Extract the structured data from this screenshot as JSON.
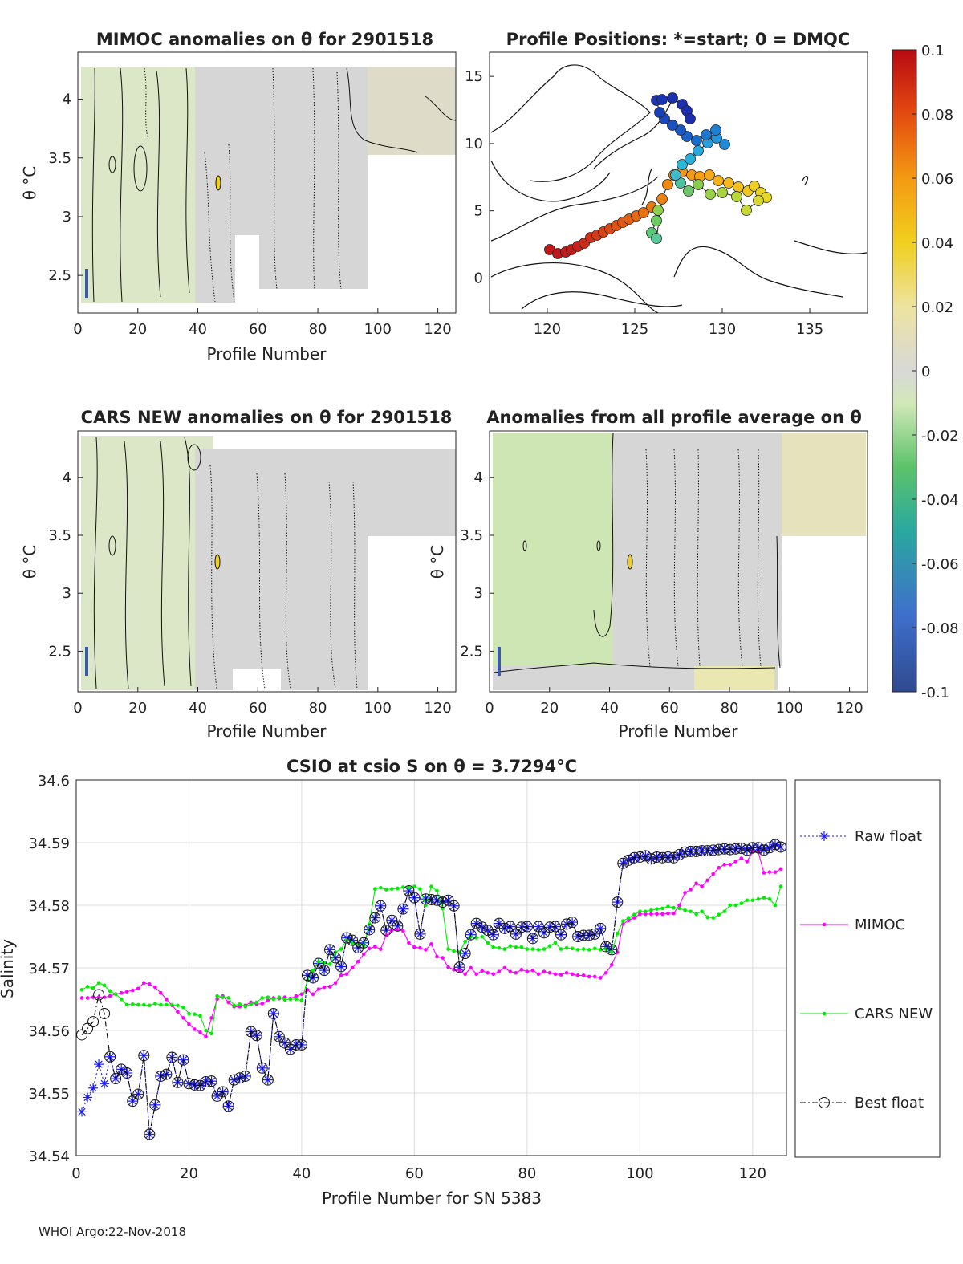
{
  "footer": "WHOI Argo:22-Nov-2018",
  "colors": {
    "raw": "#1a1aff",
    "mimoc": "#ff00ff",
    "cars": "#00ee00",
    "best": "#000000",
    "grid": "#dcdcdc"
  },
  "panels": {
    "mimoc": {
      "title": "MIMOC anomalies on θ  for 2901518",
      "xlabel": "Profile Number",
      "ylabel": "θ °C",
      "xticks": [
        "0",
        "20",
        "40",
        "60",
        "80",
        "100",
        "120"
      ],
      "yticks": [
        "2.5",
        "3",
        "3.5",
        "4"
      ]
    },
    "positions": {
      "title": "Profile Positions: *=start; 0 = DMQC",
      "xticks": [
        "120",
        "125",
        "130",
        "135"
      ],
      "yticks": [
        "0",
        "5",
        "10",
        "15"
      ]
    },
    "cars": {
      "title": "CARS NEW anomalies on θ for 2901518",
      "xlabel": "Profile Number",
      "ylabel": "θ °C",
      "xticks": [
        "0",
        "20",
        "40",
        "60",
        "80",
        "100",
        "120"
      ],
      "yticks": [
        "2.5",
        "3",
        "3.5",
        "4"
      ]
    },
    "average": {
      "title": "Anomalies from all profile average on θ",
      "xlabel": "Profile Number",
      "ylabel": "θ °C",
      "xticks": [
        "0",
        "20",
        "40",
        "60",
        "80",
        "100",
        "120"
      ],
      "yticks": [
        "2.5",
        "3",
        "3.5",
        "4"
      ]
    }
  },
  "colorbar": {
    "ticks": [
      "0.1",
      "0.08",
      "0.06",
      "0.04",
      "0.02",
      "0",
      "-0.02",
      "-0.04",
      "-0.06",
      "-0.08",
      "-0.1"
    ]
  },
  "chart_data": {
    "type": "line",
    "title": "CSIO at csio S on θ = 3.7294°C",
    "xlabel": "Profile Number for SN 5383",
    "ylabel": "Salinity",
    "xlim": [
      0,
      126
    ],
    "ylim": [
      34.54,
      34.6
    ],
    "xticks": [
      "0",
      "20",
      "40",
      "60",
      "80",
      "100",
      "120"
    ],
    "yticks": [
      "34.54",
      "34.55",
      "34.56",
      "34.57",
      "34.58",
      "34.59",
      "34.6"
    ],
    "grid": true,
    "legend": [
      "Raw float",
      "MIMOC",
      "CARS NEW",
      "Best float"
    ],
    "series": [
      {
        "name": "Raw float",
        "x": [
          1,
          2,
          3,
          4,
          5,
          6,
          7,
          8,
          9,
          10,
          11,
          12,
          13,
          14,
          15,
          16,
          17,
          18,
          19,
          20,
          21,
          22,
          23,
          24,
          25,
          26,
          27,
          28,
          29,
          30,
          31,
          32,
          33,
          34,
          35,
          36,
          37,
          38,
          39,
          40,
          41,
          42,
          43,
          44,
          45,
          46,
          47,
          48,
          49,
          50,
          51,
          52,
          53,
          54,
          55,
          56,
          57,
          58,
          59,
          60,
          61,
          62,
          63,
          64,
          65,
          66,
          67,
          68,
          69,
          70,
          71,
          72,
          73,
          74,
          75,
          76,
          77,
          78,
          79,
          80,
          81,
          82,
          83,
          84,
          85,
          86,
          87,
          88,
          89,
          90,
          91,
          92,
          93,
          94,
          95,
          96,
          97,
          98,
          99,
          100,
          101,
          102,
          103,
          104,
          105,
          106,
          107,
          108,
          109,
          110,
          111,
          112,
          113,
          114,
          115,
          116,
          117,
          118,
          119,
          120,
          121,
          122,
          123,
          124,
          125
        ],
        "y": [
          34.547,
          34.5493,
          34.5508,
          34.5546,
          34.5515,
          34.5558,
          34.5523,
          34.5538,
          34.5532,
          34.5487,
          34.5498,
          34.556,
          34.5434,
          34.5481,
          34.5527,
          34.553,
          34.5557,
          34.5517,
          34.5553,
          34.5515,
          34.5513,
          34.5512,
          34.5518,
          34.5519,
          34.5495,
          34.5502,
          34.5479,
          34.5521,
          34.5524,
          34.5527,
          34.5598,
          34.5592,
          34.554,
          34.5521,
          34.5627,
          34.559,
          34.558,
          34.557,
          34.5577,
          34.5577,
          34.5688,
          34.5684,
          34.5707,
          34.5696,
          34.5729,
          34.5716,
          34.5702,
          34.5748,
          34.5744,
          34.5732,
          34.574,
          34.5761,
          34.578,
          34.5799,
          34.576,
          34.5776,
          34.5767,
          34.5794,
          34.5823,
          34.5812,
          34.5754,
          34.581,
          34.5809,
          34.5808,
          34.5805,
          34.5808,
          34.5799,
          34.5701,
          34.5723,
          34.5753,
          34.5771,
          34.5765,
          34.576,
          34.5753,
          34.5771,
          34.5763,
          34.5766,
          34.5754,
          34.5765,
          34.5766,
          34.5747,
          34.5766,
          34.5756,
          34.5765,
          34.5766,
          34.5753,
          34.577,
          34.5773,
          34.575,
          34.5752,
          34.5752,
          34.5754,
          34.5763,
          34.5734,
          34.5729,
          34.5805,
          34.5867,
          34.5872,
          34.5876,
          34.5877,
          34.5879,
          34.5874,
          34.5877,
          34.5876,
          34.5877,
          34.5876,
          34.5881,
          34.5885,
          34.5886,
          34.5886,
          34.5887,
          34.5887,
          34.5888,
          34.5889,
          34.589,
          34.5889,
          34.589,
          34.5891,
          34.5888,
          34.5892,
          34.5892,
          34.5888,
          34.5892,
          34.5897,
          34.5893
        ]
      },
      {
        "name": "MIMOC",
        "x": [
          1,
          2,
          3,
          4,
          5,
          6,
          7,
          8,
          9,
          10,
          11,
          12,
          13,
          14,
          15,
          16,
          17,
          18,
          19,
          20,
          21,
          22,
          23,
          24,
          25,
          26,
          27,
          28,
          29,
          30,
          31,
          32,
          33,
          34,
          35,
          36,
          37,
          38,
          39,
          40,
          41,
          42,
          43,
          44,
          45,
          46,
          47,
          48,
          49,
          50,
          51,
          52,
          53,
          54,
          55,
          56,
          57,
          58,
          59,
          60,
          61,
          62,
          63,
          64,
          65,
          66,
          67,
          68,
          69,
          70,
          71,
          72,
          73,
          74,
          75,
          76,
          77,
          78,
          79,
          80,
          81,
          82,
          83,
          84,
          85,
          86,
          87,
          88,
          89,
          90,
          91,
          92,
          93,
          94,
          95,
          96,
          97,
          98,
          99,
          100,
          101,
          102,
          103,
          104,
          105,
          106,
          107,
          108,
          109,
          110,
          111,
          112,
          113,
          114,
          115,
          116,
          117,
          118,
          119,
          120,
          121,
          122,
          123,
          124,
          125
        ],
        "y": [
          34.5652,
          34.5652,
          34.5653,
          34.5653,
          34.5653,
          34.5655,
          34.5658,
          34.566,
          34.5662,
          34.5664,
          34.5667,
          34.5676,
          34.5674,
          34.5669,
          34.566,
          34.565,
          34.564,
          34.563,
          34.562,
          34.561,
          34.5602,
          34.5597,
          34.559,
          34.562,
          34.565,
          34.5655,
          34.5645,
          34.5638,
          34.5638,
          34.564,
          34.5645,
          34.5642,
          34.5643,
          34.5648,
          34.5652,
          34.5651,
          34.5653,
          34.5651,
          34.5655,
          34.5658,
          34.5665,
          34.5658,
          34.5666,
          34.5669,
          34.567,
          34.5676,
          34.5688,
          34.569,
          34.57,
          34.571,
          34.5722,
          34.5731,
          34.5734,
          34.573,
          34.5752,
          34.576,
          34.5761,
          34.5759,
          34.574,
          34.5733,
          34.5732,
          34.5729,
          34.5738,
          34.5718,
          34.5716,
          34.5701,
          34.5697,
          34.5696,
          34.569,
          34.57,
          34.569,
          34.5695,
          34.5692,
          34.569,
          34.5694,
          34.57,
          34.5694,
          34.5692,
          34.5697,
          34.5694,
          34.5696,
          34.569,
          34.5694,
          34.5692,
          34.569,
          34.5689,
          34.5692,
          34.569,
          34.5688,
          34.5688,
          34.5686,
          34.5686,
          34.5684,
          34.5692,
          34.5705,
          34.5725,
          34.577,
          34.5776,
          34.578,
          34.5786,
          34.5786,
          34.5786,
          34.5786,
          34.5786,
          34.5787,
          34.5787,
          34.58,
          34.582,
          34.5825,
          34.5835,
          34.583,
          34.584,
          34.585,
          34.586,
          34.5865,
          34.5865,
          34.587,
          34.5875,
          34.587,
          34.5885,
          34.5885,
          34.5852,
          34.5853,
          34.5853,
          34.5858
        ]
      },
      {
        "name": "CARS NEW",
        "x": [
          1,
          2,
          3,
          4,
          5,
          6,
          7,
          8,
          9,
          10,
          11,
          12,
          13,
          14,
          15,
          16,
          17,
          18,
          19,
          20,
          21,
          22,
          23,
          24,
          25,
          26,
          27,
          28,
          29,
          30,
          31,
          32,
          33,
          34,
          35,
          36,
          37,
          38,
          39,
          40,
          41,
          42,
          43,
          44,
          45,
          46,
          47,
          48,
          49,
          50,
          51,
          52,
          53,
          54,
          55,
          56,
          57,
          58,
          59,
          60,
          61,
          62,
          63,
          64,
          65,
          66,
          67,
          68,
          69,
          70,
          71,
          72,
          73,
          74,
          75,
          76,
          77,
          78,
          79,
          80,
          81,
          82,
          83,
          84,
          85,
          86,
          87,
          88,
          89,
          90,
          91,
          92,
          93,
          94,
          95,
          96,
          97,
          98,
          99,
          100,
          101,
          102,
          103,
          104,
          105,
          106,
          107,
          108,
          109,
          110,
          111,
          112,
          113,
          114,
          115,
          116,
          117,
          118,
          119,
          120,
          121,
          122,
          123,
          124,
          125
        ],
        "y": [
          34.5665,
          34.567,
          34.5668,
          34.5676,
          34.5672,
          34.5663,
          34.5658,
          34.565,
          34.5641,
          34.5642,
          34.5641,
          34.5641,
          34.564,
          34.5643,
          34.5641,
          34.5641,
          34.5641,
          34.564,
          34.5637,
          34.5627,
          34.5626,
          34.5623,
          34.56,
          34.5595,
          34.5655,
          34.5653,
          34.5652,
          34.564,
          34.5642,
          34.5638,
          34.5642,
          34.5645,
          34.5652,
          34.5653,
          34.565,
          34.5653,
          34.5649,
          34.565,
          34.565,
          34.5648,
          34.568,
          34.5696,
          34.571,
          34.5708,
          34.5706,
          34.5725,
          34.573,
          34.5745,
          34.574,
          34.5738,
          34.5735,
          34.577,
          34.5826,
          34.5828,
          34.5825,
          34.5826,
          34.5827,
          34.5829,
          34.5828,
          34.583,
          34.5826,
          34.58,
          34.583,
          34.5823,
          34.5795,
          34.573,
          34.5727,
          34.5725,
          34.5742,
          34.575,
          34.5748,
          34.575,
          34.574,
          34.5733,
          34.5732,
          34.573,
          34.5735,
          34.5733,
          34.5733,
          34.573,
          34.573,
          34.5729,
          34.573,
          34.5735,
          34.574,
          34.573,
          34.5732,
          34.5731,
          34.5729,
          34.573,
          34.5729,
          34.5731,
          34.5729,
          34.573,
          34.5725,
          34.5755,
          34.5775,
          34.578,
          34.5785,
          34.579,
          34.579,
          34.5792,
          34.5794,
          34.5795,
          34.5798,
          34.5796,
          34.5795,
          34.5792,
          34.579,
          34.5786,
          34.579,
          34.5781,
          34.578,
          34.5785,
          34.579,
          34.58,
          34.58,
          34.5803,
          34.5808,
          34.5808,
          34.581,
          34.5812,
          34.581,
          34.58,
          34.583
        ]
      },
      {
        "name": "Best float",
        "x": [
          1,
          2,
          3,
          4,
          5,
          6,
          7,
          8,
          9,
          10,
          11,
          12,
          13,
          14,
          15,
          16,
          17,
          18,
          19,
          20,
          21,
          22,
          23,
          24,
          25,
          26,
          27,
          28,
          29,
          30,
          31,
          32,
          33,
          34,
          35,
          36,
          37,
          38,
          39,
          40,
          41,
          42,
          43,
          44,
          45,
          46,
          47,
          48,
          49,
          50,
          51,
          52,
          53,
          54,
          55,
          56,
          57,
          58,
          59,
          60,
          61,
          62,
          63,
          64,
          65,
          66,
          67,
          68,
          69,
          70,
          71,
          72,
          73,
          74,
          75,
          76,
          77,
          78,
          79,
          80,
          81,
          82,
          83,
          84,
          85,
          86,
          87,
          88,
          89,
          90,
          91,
          92,
          93,
          94,
          95,
          96,
          97,
          98,
          99,
          100,
          101,
          102,
          103,
          104,
          105,
          106,
          107,
          108,
          109,
          110,
          111,
          112,
          113,
          114,
          115,
          116,
          117,
          118,
          119,
          120,
          121,
          122,
          123,
          124,
          125
        ],
        "y": [
          34.5593,
          34.5603,
          34.5614,
          34.5657,
          34.5627,
          34.5558,
          34.5523,
          34.5538,
          34.5532,
          34.5487,
          34.5498,
          34.556,
          34.5434,
          34.5481,
          34.5527,
          34.553,
          34.5557,
          34.5517,
          34.5553,
          34.5515,
          34.5513,
          34.5512,
          34.5518,
          34.5519,
          34.5495,
          34.5502,
          34.5479,
          34.5521,
          34.5524,
          34.5527,
          34.5598,
          34.5592,
          34.554,
          34.5521,
          34.5627,
          34.559,
          34.558,
          34.557,
          34.5577,
          34.5577,
          34.5688,
          34.5684,
          34.5707,
          34.5696,
          34.5729,
          34.5716,
          34.5702,
          34.5748,
          34.5744,
          34.5732,
          34.574,
          34.5761,
          34.578,
          34.5799,
          34.576,
          34.5776,
          34.5767,
          34.5794,
          34.5823,
          34.5812,
          34.5754,
          34.581,
          34.5809,
          34.5808,
          34.5805,
          34.5808,
          34.5799,
          34.5701,
          34.5723,
          34.5753,
          34.5771,
          34.5765,
          34.576,
          34.5753,
          34.5771,
          34.5763,
          34.5766,
          34.5754,
          34.5765,
          34.5766,
          34.5747,
          34.5766,
          34.5756,
          34.5765,
          34.5766,
          34.5753,
          34.577,
          34.5773,
          34.575,
          34.5752,
          34.5752,
          34.5754,
          34.5763,
          34.5734,
          34.5729,
          34.5805,
          34.5867,
          34.5872,
          34.5876,
          34.5877,
          34.5879,
          34.5874,
          34.5877,
          34.5876,
          34.5877,
          34.5876,
          34.5881,
          34.5885,
          34.5886,
          34.5886,
          34.5887,
          34.5887,
          34.5888,
          34.5889,
          34.589,
          34.5889,
          34.589,
          34.5891,
          34.5888,
          34.5892,
          34.5892,
          34.5888,
          34.5892,
          34.5897,
          34.5893
        ]
      }
    ]
  }
}
